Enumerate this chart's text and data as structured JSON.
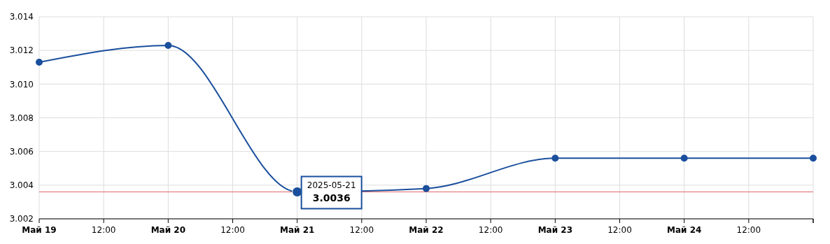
{
  "chart_data": {
    "type": "line",
    "x": [
      "2025-05-19",
      "2025-05-20",
      "2025-05-21",
      "2025-05-22",
      "2025-05-23",
      "2025-05-24",
      "2025-05-25"
    ],
    "series": [
      {
        "color": "#1a4f9c",
        "values": [
          3.0113,
          3.0123,
          3.0036,
          3.0038,
          3.0056,
          3.0056,
          3.0056
        ]
      }
    ],
    "xlim": [
      "2025-05-19",
      "2025-05-25"
    ],
    "xticks": [
      {
        "value": "2025-05-19",
        "label": "Май 19"
      },
      {
        "value": "2025-05-19T12:00",
        "label": "12:00"
      },
      {
        "value": "2025-05-20",
        "label": "Май 20"
      },
      {
        "value": "2025-05-20T12:00",
        "label": "12:00"
      },
      {
        "value": "2025-05-21",
        "label": "Май 21"
      },
      {
        "value": "2025-05-21T12:00",
        "label": "12:00"
      },
      {
        "value": "2025-05-22",
        "label": "Май 22"
      },
      {
        "value": "2025-05-22T12:00",
        "label": "12:00"
      },
      {
        "value": "2025-05-23",
        "label": "Май 23"
      },
      {
        "value": "2025-05-23T12:00",
        "label": "12:00"
      },
      {
        "value": "2025-05-24",
        "label": "Май 24"
      },
      {
        "value": "2025-05-24T12:00",
        "label": "12:00"
      },
      {
        "value": "2025-05-25",
        "label": null
      }
    ],
    "ylim": [
      3.002,
      3.014
    ],
    "yticks": [
      {
        "value": 3.002,
        "label": "3.002"
      },
      {
        "value": 3.004,
        "label": "3.004"
      },
      {
        "value": 3.006,
        "label": "3.006"
      },
      {
        "value": 3.008,
        "label": "3.008"
      },
      {
        "value": 3.01,
        "label": "3.010"
      },
      {
        "value": 3.012,
        "label": "3.012"
      },
      {
        "value": 3.014,
        "label": "3.014"
      }
    ],
    "ref_lines": [
      {
        "axis": "y",
        "value": 3.0036,
        "color": "#e06666"
      }
    ],
    "annotations": [
      {
        "text": "2025-05-21",
        "x": "2025-05-21",
        "y": 3.0036
      },
      {
        "text": "3.0036",
        "x": "2025-05-21",
        "y": 3.0036
      }
    ],
    "grid": true,
    "marker": "circle",
    "line_style": "solid"
  }
}
